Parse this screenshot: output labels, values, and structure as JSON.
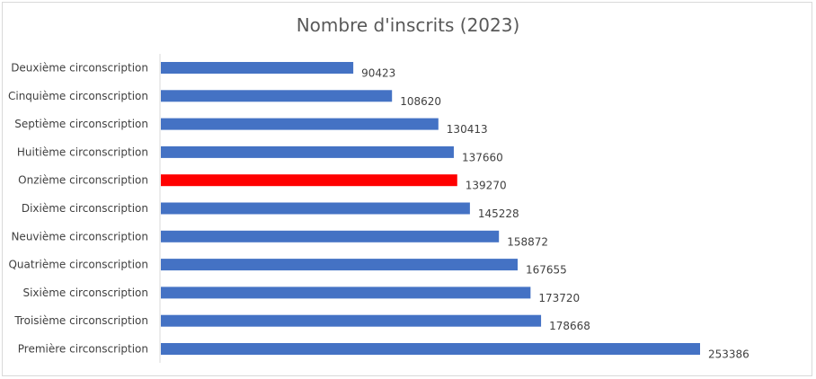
{
  "chart_data": {
    "type": "bar",
    "orientation": "horizontal",
    "title": "Nombre d'inscrits (2023)",
    "categories": [
      "Deuxième circonscription",
      "Cinquième circonscription",
      "Septième circonscription",
      "Huitième circonscription",
      "Onzième circonscription",
      "Dixième circonscription",
      "Neuvième circonscription",
      "Quatrième circonscription",
      "Sixième circonscription",
      "Troisième circonscription",
      "Première circonscription"
    ],
    "values": [
      90423,
      108620,
      130413,
      137660,
      139270,
      145228,
      158872,
      167655,
      173720,
      178668,
      253386
    ],
    "colors": [
      "#4472C4",
      "#4472C4",
      "#4472C4",
      "#4472C4",
      "#FF0000",
      "#4472C4",
      "#4472C4",
      "#4472C4",
      "#4472C4",
      "#4472C4",
      "#4472C4"
    ],
    "data_labels": true,
    "grid": false,
    "legend": "none"
  }
}
